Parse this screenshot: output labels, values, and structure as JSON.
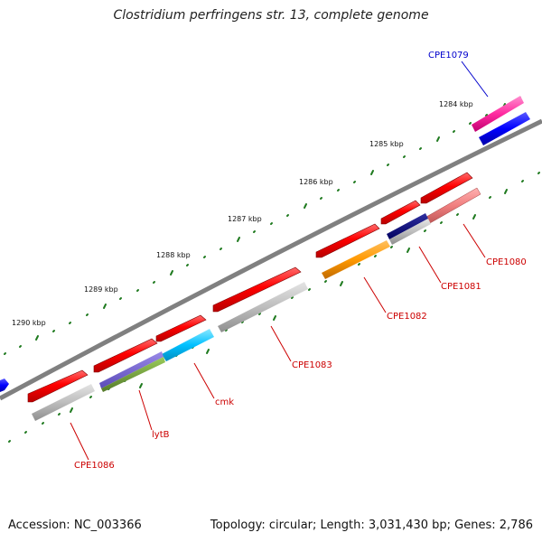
{
  "title": "Clostridium perfringens str. 13, complete genome",
  "footer": {
    "accession": "Accession: NC_003366",
    "summary": "Topology: circular; Length: 3,031,430 bp; Genes: 2,786"
  },
  "colors": {
    "backbone": "#808080",
    "tick": "#1f7a1f",
    "label_red": "#cc0000",
    "label_blue": "#0000cc"
  },
  "ticks": [
    "1284 kbp",
    "1285 kbp",
    "1286 kbp",
    "1287 kbp",
    "1288 kbp",
    "1289 kbp",
    "1290 kbp"
  ],
  "genes": [
    {
      "label": "CPE1079",
      "color": "#0000cc"
    },
    {
      "label": "CPE1080",
      "color": "#cc0000"
    },
    {
      "label": "CPE1081",
      "color": "#cc0000"
    },
    {
      "label": "CPE1082",
      "color": "#cc0000"
    },
    {
      "label": "CPE1083",
      "color": "#cc0000"
    },
    {
      "label": "cmk",
      "color": "#cc0000"
    },
    {
      "label": "lytB",
      "color": "#cc0000"
    },
    {
      "label": "CPE1086",
      "color": "#cc0000"
    }
  ]
}
